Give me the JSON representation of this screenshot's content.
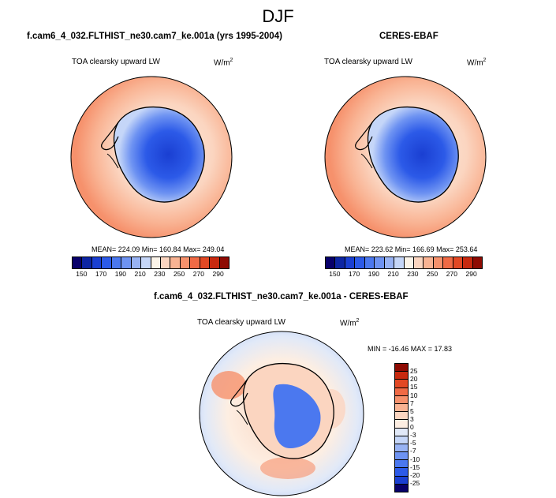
{
  "season": "DJF",
  "panels": [
    {
      "title": "f.cam6_4_032.FLTHIST_ne30.cam7_ke.001a (yrs 1995-2004)",
      "variable": "TOA clearsky upward LW",
      "units_base": "W/m",
      "units_exp": "2",
      "stats": "MEAN= 224.09  Min= 160.84  Max= 249.04"
    },
    {
      "title": "CERES-EBAF",
      "variable": "TOA clearsky upward LW",
      "units_base": "W/m",
      "units_exp": "2",
      "stats": "MEAN= 223.62  Min= 166.69  Max= 253.64"
    }
  ],
  "abs_colorbar": {
    "labels": [
      "150",
      "170",
      "190",
      "210",
      "230",
      "250",
      "270",
      "290"
    ],
    "colors": [
      "#08006a",
      "#0d25a3",
      "#1a3fd2",
      "#2c5ae8",
      "#4b78ef",
      "#6e93f2",
      "#98b3f4",
      "#c5d6f8",
      "#fbf4e9",
      "#fbd5c0",
      "#f9b393",
      "#f6916c",
      "#f06a45",
      "#e24824",
      "#c8290f",
      "#8e0b03"
    ]
  },
  "diff_panel": {
    "title": "f.cam6_4_032.FLTHIST_ne30.cam7_ke.001a - CERES-EBAF",
    "variable": "TOA clearsky upward LW",
    "units_base": "W/m",
    "units_exp": "2",
    "stats": "MIN = -16.46 MAX =  17.83"
  },
  "diff_colorbar": {
    "labels": [
      "25",
      "20",
      "15",
      "10",
      "7",
      "5",
      "3",
      "0",
      "-3",
      "-5",
      "-7",
      "-10",
      "-15",
      "-20",
      "-25"
    ],
    "colors": [
      "#8e0b03",
      "#c8290f",
      "#e24824",
      "#f06a45",
      "#f6916c",
      "#f9b393",
      "#fbd5c0",
      "#fdeee2",
      "#e1e9f8",
      "#c5d6f8",
      "#98b3f4",
      "#6e93f2",
      "#4b78ef",
      "#2c5ae8",
      "#1a3fd2",
      "#08006a"
    ]
  }
}
